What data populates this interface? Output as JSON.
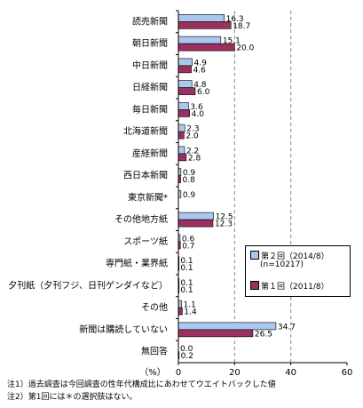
{
  "chart_data": {
    "type": "bar",
    "orientation": "horizontal",
    "categories": [
      "読売新聞",
      "朝日新聞",
      "中日新聞",
      "日経新聞",
      "毎日新聞",
      "北海道新聞",
      "産経新聞",
      "西日本新聞",
      "東京新聞*",
      "その他地方紙",
      "スポーツ紙",
      "専門紙・業界紙",
      "夕刊紙（夕刊フジ、日刊ゲンダイなど）",
      "その他",
      "新聞は購読していない",
      "無回答"
    ],
    "series": [
      {
        "name": "第２回（2014/8）",
        "color": "#a9c8ee",
        "values": [
          16.3,
          15.1,
          4.9,
          4.8,
          3.6,
          2.3,
          2.2,
          0.9,
          0.9,
          12.5,
          0.6,
          0.1,
          0.1,
          1.1,
          34.7,
          0.0
        ],
        "labels": [
          "16.3",
          "15.1",
          "4.9",
          "4.8",
          "3.6",
          "2.3",
          "2.2",
          "0.9",
          "0.9",
          "12.5",
          "0.6",
          "0.1",
          "0.1",
          "1.1",
          "34.7",
          "0.0"
        ]
      },
      {
        "name": "第１回（2011/8）",
        "color": "#9b3160",
        "values": [
          18.7,
          20.0,
          4.6,
          6.0,
          4.0,
          2.0,
          2.8,
          0.8,
          null,
          12.3,
          0.7,
          0.1,
          0.1,
          1.4,
          26.5,
          0.2
        ],
        "labels": [
          "18.7",
          "20.0",
          "4.6",
          "6.0",
          "4.0",
          "2.0",
          "2.8",
          "0.8",
          "",
          "12.3",
          "0.7",
          "0.1",
          "0.1",
          "1.4",
          "26.5",
          "0.2"
        ]
      }
    ],
    "xlim": [
      0,
      60
    ],
    "xticks": [
      "0",
      "20",
      "40",
      "60"
    ],
    "xlabel": "（%）",
    "gridlines_at": [
      20,
      40
    ],
    "legend_placement": "lower-right",
    "legend_note": "(n=10217)"
  },
  "notes": [
    "注1）過去調査は今回調査の性年代構成比にあわせてウエイトバックした値",
    "注2）第1回には＊の選択肢はない。"
  ]
}
